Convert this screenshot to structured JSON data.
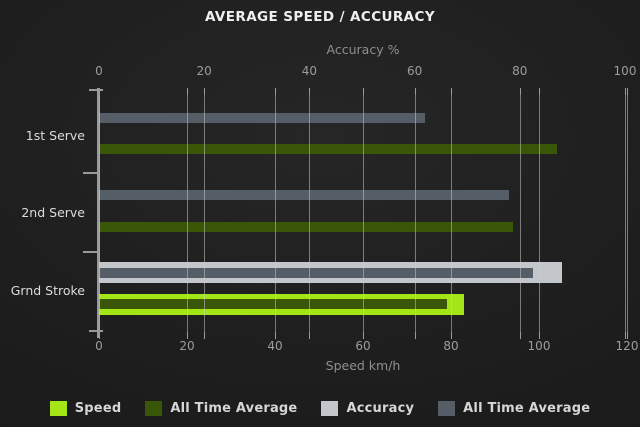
{
  "title": "AVERAGE SPEED / ACCURACY",
  "chart_data": {
    "type": "bar",
    "orientation": "horizontal",
    "title": "AVERAGE SPEED / ACCURACY",
    "categories": [
      "1st Serve",
      "2nd Serve",
      "Grnd Stroke"
    ],
    "axes": {
      "top": {
        "label": "Accuracy %",
        "ticks": [
          0,
          20,
          40,
          60,
          80,
          100
        ],
        "range": [
          0,
          100
        ]
      },
      "bottom": {
        "label": "Speed km/h",
        "ticks": [
          0,
          20,
          40,
          60,
          80,
          100,
          120
        ],
        "range": [
          0,
          120
        ]
      }
    },
    "series": [
      {
        "name": "Speed",
        "group": "speed",
        "role": "current",
        "axis": "bottom",
        "color": "#a3e516",
        "values": [
          null,
          null,
          83
        ]
      },
      {
        "name": "All Time Average",
        "group": "speed",
        "role": "average",
        "axis": "bottom",
        "color": "#3a5607",
        "values": [
          104,
          94,
          79
        ]
      },
      {
        "name": "Accuracy",
        "group": "accuracy",
        "role": "current",
        "axis": "top",
        "color": "#c3c7cb",
        "values": [
          null,
          null,
          88
        ]
      },
      {
        "name": "All Time Average",
        "group": "accuracy",
        "role": "average",
        "axis": "top",
        "color": "#555d66",
        "values": [
          62,
          78,
          82.5
        ]
      }
    ],
    "grid": true,
    "legend_position": "bottom"
  },
  "colors": {
    "background": "#1d1d1d",
    "grid": "#9a9a9a",
    "tick_label": "#9c9c9c",
    "axis_label": "#8f8f8f",
    "category_label": "#dcdcdc",
    "title": "#f0f0f0",
    "legend_text": "#d6d6d6"
  }
}
